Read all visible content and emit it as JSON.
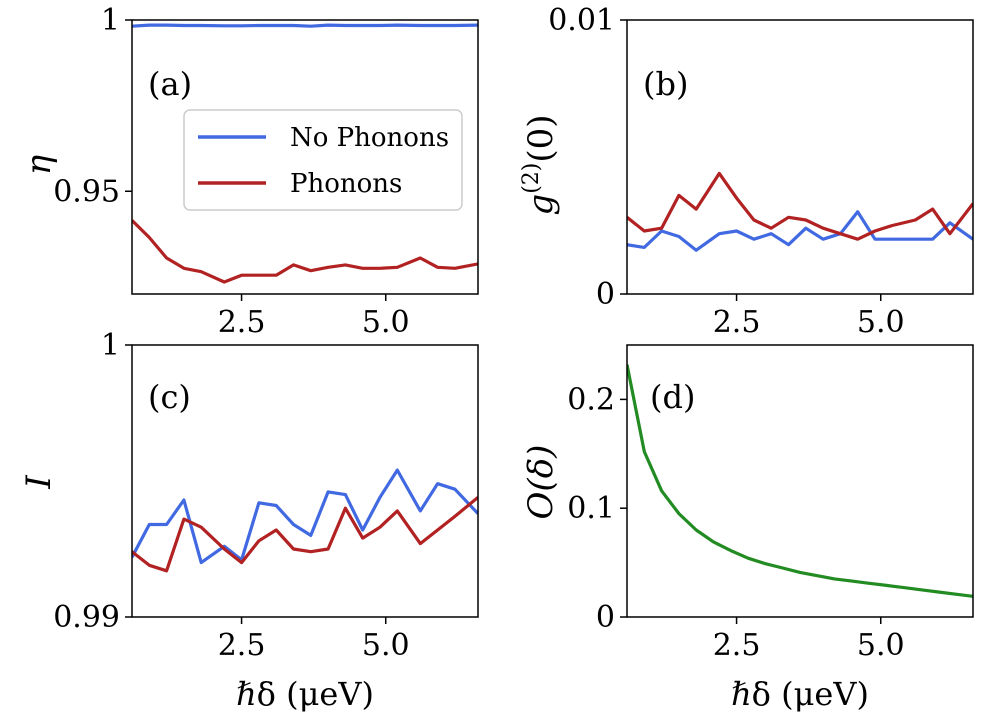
{
  "chart_data": [
    {
      "panel": "(a)",
      "type": "line",
      "ylabel": "η",
      "xlabel": "",
      "xlim": [
        0.6,
        6.6
      ],
      "ylim": [
        0.92,
        1.0
      ],
      "xticks": [
        {
          "v": 2.5,
          "label": "2.5"
        },
        {
          "v": 5.0,
          "label": "5.0"
        }
      ],
      "yticks": [
        {
          "v": 1.0,
          "label": "1"
        },
        {
          "v": 0.95,
          "label": "0.95"
        }
      ],
      "legend": {
        "position": "center",
        "entries": [
          "No Phonons",
          "Phonons"
        ]
      },
      "x": [
        0.6,
        0.9,
        1.2,
        1.5,
        1.8,
        2.2,
        2.5,
        2.8,
        3.1,
        3.4,
        3.7,
        4.0,
        4.3,
        4.6,
        4.9,
        5.2,
        5.6,
        5.9,
        6.2,
        6.6
      ],
      "series": [
        {
          "name": "No Phonons",
          "color": "#4169E1",
          "values": [
            0.9982,
            0.9985,
            0.9985,
            0.9984,
            0.9984,
            0.9983,
            0.9983,
            0.9984,
            0.9984,
            0.9984,
            0.9982,
            0.9985,
            0.9984,
            0.9984,
            0.9984,
            0.9985,
            0.9984,
            0.9984,
            0.9984,
            0.9985
          ]
        },
        {
          "name": "Phonons",
          "color": "#B22222",
          "values": [
            0.9415,
            0.9365,
            0.9305,
            0.9275,
            0.9265,
            0.9235,
            0.9255,
            0.9255,
            0.9255,
            0.9285,
            0.9268,
            0.9278,
            0.9285,
            0.9275,
            0.9275,
            0.9278,
            0.9305,
            0.9278,
            0.9275,
            0.9288
          ]
        }
      ]
    },
    {
      "panel": "(b)",
      "type": "line",
      "ylabel": "g(2)(0)",
      "ylabel_base": "g",
      "ylabel_sup": "(2)",
      "ylabel_tail": "(0)",
      "xlabel": "",
      "xlim": [
        0.6,
        6.6
      ],
      "ylim": [
        0.0,
        0.01
      ],
      "xticks": [
        {
          "v": 2.5,
          "label": "2.5"
        },
        {
          "v": 5.0,
          "label": "5.0"
        }
      ],
      "yticks": [
        {
          "v": 0.01,
          "label": "0.01"
        },
        {
          "v": 0.0,
          "label": "0"
        }
      ],
      "x": [
        0.6,
        0.9,
        1.2,
        1.5,
        1.8,
        2.2,
        2.5,
        2.8,
        3.1,
        3.4,
        3.7,
        4.0,
        4.3,
        4.6,
        4.9,
        5.2,
        5.6,
        5.9,
        6.2,
        6.6
      ],
      "series": [
        {
          "name": "No Phonons",
          "color": "#4169E1",
          "values": [
            0.0018,
            0.0017,
            0.0023,
            0.0021,
            0.0016,
            0.0022,
            0.0023,
            0.002,
            0.0022,
            0.0018,
            0.0024,
            0.002,
            0.0022,
            0.003,
            0.002,
            0.002,
            0.002,
            0.002,
            0.0026,
            0.002
          ]
        },
        {
          "name": "Phonons",
          "color": "#B22222",
          "values": [
            0.0028,
            0.0023,
            0.0024,
            0.0036,
            0.0031,
            0.0044,
            0.0035,
            0.0027,
            0.0024,
            0.0028,
            0.0027,
            0.0024,
            0.0022,
            0.002,
            0.0023,
            0.0025,
            0.0027,
            0.0031,
            0.0022,
            0.0033
          ]
        }
      ]
    },
    {
      "panel": "(c)",
      "type": "line",
      "ylabel": "I",
      "xlabel": "ℏδ (μeV)",
      "xlim": [
        0.6,
        6.6
      ],
      "ylim": [
        0.99,
        1.0
      ],
      "xticks": [
        {
          "v": 2.5,
          "label": "2.5"
        },
        {
          "v": 5.0,
          "label": "5.0"
        }
      ],
      "yticks": [
        {
          "v": 1.0,
          "label": "1"
        },
        {
          "v": 0.99,
          "label": "0.99"
        }
      ],
      "x": [
        0.6,
        0.9,
        1.2,
        1.5,
        1.8,
        2.2,
        2.5,
        2.8,
        3.1,
        3.4,
        3.7,
        4.0,
        4.3,
        4.6,
        4.9,
        5.2,
        5.6,
        5.9,
        6.2,
        6.6
      ],
      "series": [
        {
          "name": "No Phonons",
          "color": "#4169E1",
          "values": [
            0.9922,
            0.9934,
            0.9934,
            0.9943,
            0.992,
            0.9926,
            0.9921,
            0.9942,
            0.9941,
            0.9934,
            0.993,
            0.9946,
            0.9945,
            0.9932,
            0.9944,
            0.9954,
            0.9939,
            0.9949,
            0.9947,
            0.9938
          ]
        },
        {
          "name": "Phonons",
          "color": "#B22222",
          "values": [
            0.9924,
            0.9919,
            0.9917,
            0.9936,
            0.9933,
            0.9925,
            0.992,
            0.9928,
            0.9932,
            0.9925,
            0.9924,
            0.9925,
            0.994,
            0.9929,
            0.9933,
            0.9939,
            0.9927,
            0.9932,
            0.9937,
            0.9944
          ]
        }
      ]
    },
    {
      "panel": "(d)",
      "type": "line",
      "ylabel": "O(δ)",
      "xlabel": "ℏδ (μeV)",
      "xlim": [
        0.6,
        6.6
      ],
      "ylim": [
        0.0,
        0.25
      ],
      "xticks": [
        {
          "v": 2.5,
          "label": "2.5"
        },
        {
          "v": 5.0,
          "label": "5.0"
        }
      ],
      "yticks": [
        {
          "v": 0.2,
          "label": "0.2"
        },
        {
          "v": 0.1,
          "label": "0.1"
        },
        {
          "v": 0.0,
          "label": "0"
        }
      ],
      "x": [
        0.6,
        0.9,
        1.2,
        1.5,
        1.8,
        2.1,
        2.4,
        2.7,
        3.0,
        3.3,
        3.6,
        3.9,
        4.2,
        4.5,
        4.8,
        5.1,
        5.4,
        5.7,
        6.0,
        6.3,
        6.6
      ],
      "series": [
        {
          "name": "O(δ)",
          "color": "#228B22",
          "values": [
            0.232,
            0.152,
            0.116,
            0.095,
            0.08,
            0.069,
            0.061,
            0.054,
            0.049,
            0.045,
            0.041,
            0.038,
            0.035,
            0.033,
            0.031,
            0.029,
            0.027,
            0.025,
            0.023,
            0.021,
            0.019
          ]
        }
      ]
    }
  ]
}
